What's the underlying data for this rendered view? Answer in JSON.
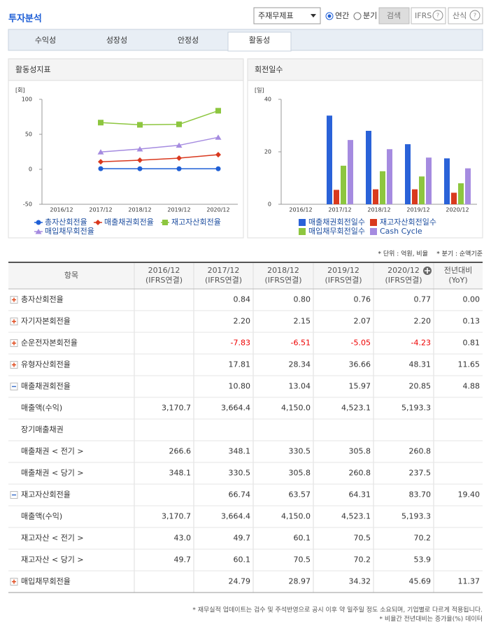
{
  "header": {
    "title": "투자분석",
    "statement": "주재무제표",
    "period_options": [
      "연간",
      "분기"
    ],
    "period_selected": 0,
    "search": "검색",
    "ifrs": "IFRS",
    "formula": "산식"
  },
  "tabs": {
    "items": [
      "수익성",
      "성장성",
      "안정성",
      "활동성"
    ],
    "active": 3
  },
  "chart_data": [
    {
      "type": "line",
      "title": "활동성지표",
      "unit": "[회]",
      "categories": [
        "2016/12",
        "2017/12",
        "2018/12",
        "2019/12",
        "2020/12"
      ],
      "ylim": [
        -50,
        100
      ],
      "yticks": [
        -50,
        0,
        50,
        100
      ],
      "series": [
        {
          "name": "총자산회전율",
          "color": "#1f5fd6",
          "marker": "circle",
          "values": [
            null,
            0.84,
            0.8,
            0.76,
            0.77
          ]
        },
        {
          "name": "매출채권회전율",
          "color": "#d9381e",
          "marker": "diamond",
          "values": [
            null,
            10.8,
            13.04,
            15.97,
            20.85
          ]
        },
        {
          "name": "재고자산회전율",
          "color": "#8dc63f",
          "marker": "square",
          "values": [
            null,
            66.74,
            63.57,
            64.31,
            83.7
          ]
        },
        {
          "name": "매입채무회전율",
          "color": "#a58be0",
          "marker": "triangle",
          "values": [
            null,
            24.79,
            28.97,
            34.32,
            45.69
          ]
        }
      ]
    },
    {
      "type": "bar",
      "title": "회전일수",
      "unit": "[일]",
      "categories": [
        "2016/12",
        "2017/12",
        "2018/12",
        "2019/12",
        "2020/12"
      ],
      "ylim": [
        0,
        40
      ],
      "yticks": [
        0,
        20,
        40
      ],
      "series": [
        {
          "name": "매출채권회전일수",
          "color": "#2a62d8",
          "values": [
            null,
            33.8,
            28.0,
            22.9,
            17.5
          ]
        },
        {
          "name": "재고자산회전일수",
          "color": "#d93a1e",
          "values": [
            null,
            5.5,
            5.7,
            5.7,
            4.4
          ]
        },
        {
          "name": "매입채무회전일수",
          "color": "#8dc63f",
          "values": [
            null,
            14.7,
            12.6,
            10.6,
            8.0
          ]
        },
        {
          "name": "Cash Cycle",
          "color": "#a58be0",
          "values": [
            null,
            24.5,
            21.0,
            17.8,
            13.7
          ]
        }
      ]
    }
  ],
  "unit_note": [
    "* 단위 : 억원, 비율",
    "* 분기 : 순액기준"
  ],
  "table": {
    "columns": [
      [
        "항목"
      ],
      [
        "2016/12",
        "(IFRS연결)"
      ],
      [
        "2017/12",
        "(IFRS연결)"
      ],
      [
        "2018/12",
        "(IFRS연결)"
      ],
      [
        "2019/12",
        "(IFRS연결)"
      ],
      [
        "2020/12",
        "(IFRS연결)"
      ],
      [
        "전년대비",
        "(YoY)"
      ]
    ],
    "rows": [
      {
        "label": "총자산회전율",
        "expandable": true,
        "expanded": false,
        "cells": [
          null,
          "0.84",
          "0.80",
          "0.76",
          "0.77",
          "0.00"
        ]
      },
      {
        "label": "자기자본회전율",
        "expandable": true,
        "expanded": false,
        "cells": [
          null,
          "2.20",
          "2.15",
          "2.07",
          "2.20",
          "0.13"
        ]
      },
      {
        "label": "순운전자본회전율",
        "expandable": true,
        "expanded": false,
        "cells": [
          null,
          "-7.83",
          "-6.51",
          "-5.05",
          "-4.23",
          "0.81"
        ]
      },
      {
        "label": "유형자산회전율",
        "expandable": true,
        "expanded": false,
        "cells": [
          null,
          "17.81",
          "28.34",
          "36.66",
          "48.31",
          "11.65"
        ]
      },
      {
        "label": "매출채권회전율",
        "expandable": true,
        "expanded": true,
        "cells": [
          null,
          "10.80",
          "13.04",
          "15.97",
          "20.85",
          "4.88"
        ]
      },
      {
        "label": "매출액(수익)",
        "expandable": false,
        "cells": [
          "3,170.7",
          "3,664.4",
          "4,150.0",
          "4,523.1",
          "5,193.3",
          null
        ]
      },
      {
        "label": "장기매출채권",
        "expandable": false,
        "cells": [
          null,
          null,
          null,
          null,
          null,
          null
        ]
      },
      {
        "label": "매출채권 < 전기 >",
        "expandable": false,
        "cells": [
          "266.6",
          "348.1",
          "330.5",
          "305.8",
          "260.8",
          null
        ]
      },
      {
        "label": "매출채권 < 당기 >",
        "expandable": false,
        "cells": [
          "348.1",
          "330.5",
          "305.8",
          "260.8",
          "237.5",
          null
        ]
      },
      {
        "label": "재고자산회전율",
        "expandable": true,
        "expanded": true,
        "cells": [
          null,
          "66.74",
          "63.57",
          "64.31",
          "83.70",
          "19.40"
        ]
      },
      {
        "label": "매출액(수익)",
        "expandable": false,
        "cells": [
          "3,170.7",
          "3,664.4",
          "4,150.0",
          "4,523.1",
          "5,193.3",
          null
        ]
      },
      {
        "label": "재고자산 < 전기 >",
        "expandable": false,
        "cells": [
          "43.0",
          "49.7",
          "60.1",
          "70.5",
          "70.2",
          null
        ]
      },
      {
        "label": "재고자산 < 당기 >",
        "expandable": false,
        "cells": [
          "49.7",
          "60.1",
          "70.5",
          "70.2",
          "53.9",
          null
        ]
      },
      {
        "label": "매입채무회전율",
        "expandable": true,
        "expanded": false,
        "cells": [
          null,
          "24.79",
          "28.97",
          "34.32",
          "45.69",
          "11.37"
        ]
      }
    ]
  },
  "footnotes": [
    "* 재무실적 업데이트는 검수 및 주석반영으로 공시 이후 약 일주일 정도 소요되며, 기업별로 다르게 적용됩니다.",
    "* 비율간 전년대비는 증가율(%) 데이터"
  ]
}
